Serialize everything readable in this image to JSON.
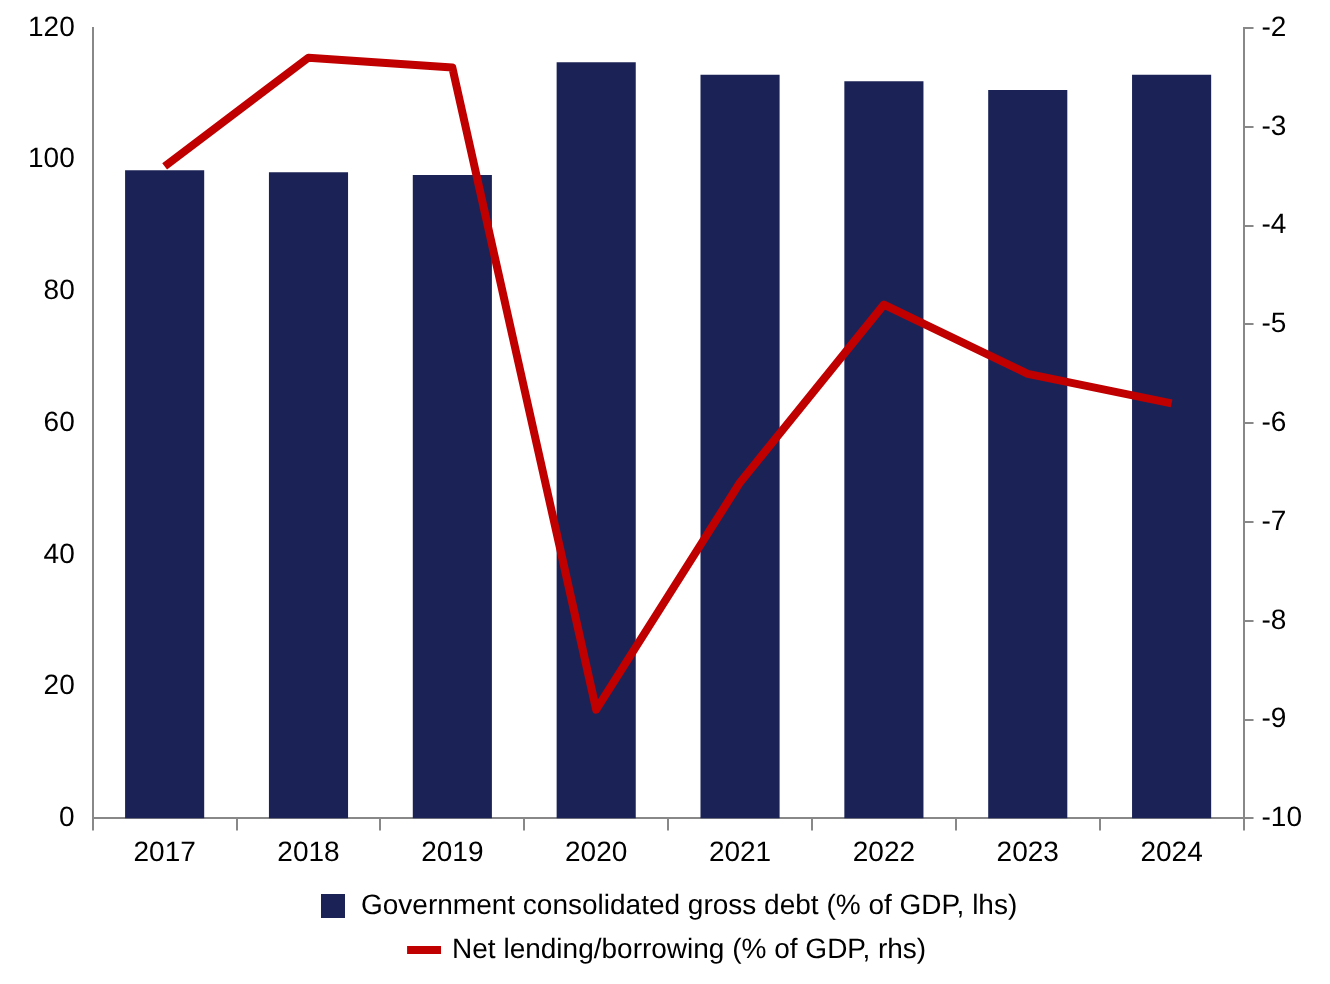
{
  "chart_data": {
    "type": "bar",
    "categories": [
      "2017",
      "2018",
      "2019",
      "2020",
      "2021",
      "2022",
      "2023",
      "2024"
    ],
    "series": [
      {
        "name": "Government consolidated gross debt (% of GDP, lhs)",
        "color": "#1b2356",
        "values": [
          98.4,
          98.1,
          97.7,
          114.8,
          112.9,
          111.9,
          110.6,
          112.9
        ]
      },
      {
        "name": "Net lending/borrowing (% of GDP, rhs)",
        "type": "line",
        "axis": "y2",
        "color": "#c00000",
        "marker": "none",
        "values": [
          -3.4,
          -2.3,
          -2.4,
          -8.9,
          -6.6,
          -4.8,
          -5.5,
          -5.8
        ]
      }
    ],
    "ylim": [
      0,
      120
    ],
    "yticks": [
      0,
      20,
      40,
      60,
      80,
      100,
      120
    ],
    "y2lim": [
      -10,
      -2
    ],
    "y2ticks": [
      -10,
      -9,
      -8,
      -7,
      -6,
      -5,
      -4,
      -3,
      -2
    ],
    "grid": false,
    "legend": "bottom"
  }
}
